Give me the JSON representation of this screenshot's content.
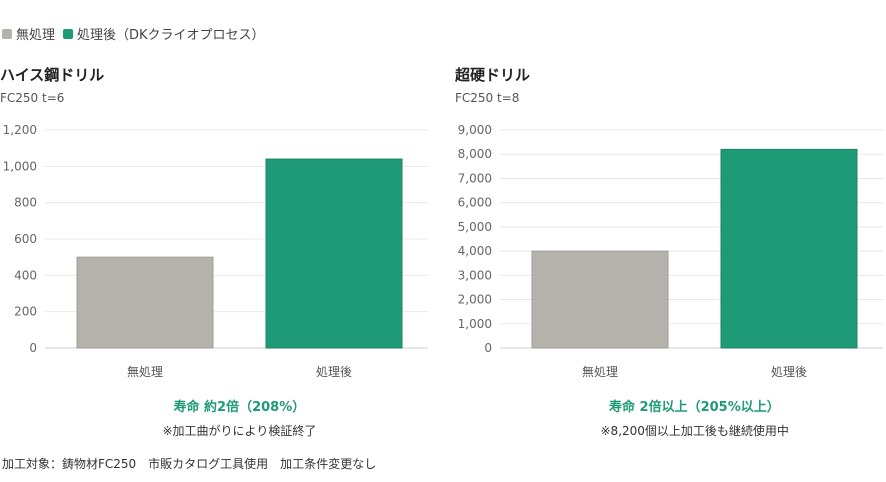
{
  "colors": {
    "untreated": "#b5b2ac",
    "treated": "#1e9b76",
    "accent": "#1e9b76",
    "grid": "#e8e8e8"
  },
  "legend": [
    {
      "label": "無処理",
      "color": "#b5b2ac"
    },
    {
      "label": "処理後（DKクライオプロセス）",
      "color": "#1e9b76"
    }
  ],
  "chart_data": [
    {
      "type": "bar",
      "title": "ハイス鋼ドリル",
      "subtitle": "FC250 t=6",
      "categories": [
        "無処理",
        "処理後"
      ],
      "values": [
        500,
        1040
      ],
      "ylim": [
        0,
        1200
      ],
      "yticks": [
        0,
        200,
        400,
        600,
        800,
        1000,
        1200
      ],
      "ytick_labels": [
        "0",
        "200",
        "400",
        "600",
        "800",
        "1,000",
        "1,200"
      ],
      "grid": true,
      "result": "寿命 約2倍（208%）",
      "note": "※加工曲がりにより検証終了"
    },
    {
      "type": "bar",
      "title": "超硬ドリル",
      "subtitle": "FC250 t=8",
      "categories": [
        "無処理",
        "処理後"
      ],
      "values": [
        4000,
        8200
      ],
      "ylim": [
        0,
        9000
      ],
      "yticks": [
        0,
        1000,
        2000,
        3000,
        4000,
        5000,
        6000,
        7000,
        8000,
        9000
      ],
      "ytick_labels": [
        "0",
        "1,000",
        "2,000",
        "3,000",
        "4,000",
        "5,000",
        "6,000",
        "7,000",
        "8,000",
        "9,000"
      ],
      "grid": true,
      "result": "寿命 2倍以上（205%以上）",
      "note": "※8,200個以上加工後も継続使用中"
    }
  ],
  "footer": "加工対象：鋳物材FC250　市販カタログ工具使用　加工条件変更なし"
}
